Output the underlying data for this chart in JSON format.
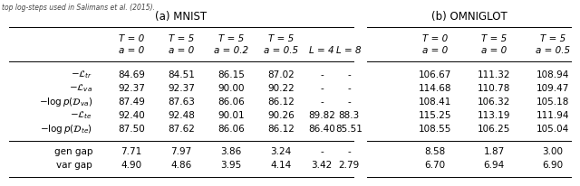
{
  "title_left": "(a) MNIST",
  "title_right": "(b) OMNIGLOT",
  "top_note": "top log-steps used in Salimans et al. (2015).",
  "mnist_col_headers_line1": [
    "T = 0",
    "T = 5",
    "T = 5",
    "T = 5",
    "",
    ""
  ],
  "mnist_col_headers_line2": [
    "a = 0",
    "a = 0",
    "a = 0.2",
    "a = 0.5",
    "L = 4",
    "L = 8"
  ],
  "omni_col_headers_line1": [
    "T = 0",
    "T = 5",
    "T = 5"
  ],
  "omni_col_headers_line2": [
    "a = 0",
    "a = 0",
    "a = 0.5"
  ],
  "label_texts": [
    "$-\\mathcal{L}_{tr}$",
    "$-\\mathcal{L}_{va}$",
    "$-\\log p(\\mathcal{D}_{va})$",
    "$-\\mathcal{L}_{te}$",
    "$-\\log p(\\mathcal{D}_{te})$"
  ],
  "gap_labels": [
    "gen gap",
    "var gap"
  ],
  "mnist_data": [
    [
      "84.69",
      "84.51",
      "86.15",
      "87.02",
      "-",
      "-"
    ],
    [
      "92.37",
      "92.37",
      "90.00",
      "90.22",
      "-",
      "-"
    ],
    [
      "87.49",
      "87.63",
      "86.06",
      "86.12",
      "-",
      "-"
    ],
    [
      "92.40",
      "92.48",
      "90.01",
      "90.26",
      "89.82",
      "88.3"
    ],
    [
      "87.50",
      "87.62",
      "86.06",
      "86.12",
      "86.40",
      "85.51"
    ],
    [
      "7.71",
      "7.97",
      "3.86",
      "3.24",
      "-",
      "-"
    ],
    [
      "4.90",
      "4.86",
      "3.95",
      "4.14",
      "3.42",
      "2.79"
    ]
  ],
  "omni_data": [
    [
      "106.67",
      "111.32",
      "108.94"
    ],
    [
      "114.68",
      "110.78",
      "109.47"
    ],
    [
      "108.41",
      "106.32",
      "105.18"
    ],
    [
      "115.25",
      "113.19",
      "111.94"
    ],
    [
      "108.55",
      "106.25",
      "105.04"
    ],
    [
      "8.58",
      "1.87",
      "3.00"
    ],
    [
      "6.70",
      "6.94",
      "6.90"
    ]
  ],
  "figsize": [
    6.4,
    2.06
  ],
  "dpi": 100
}
